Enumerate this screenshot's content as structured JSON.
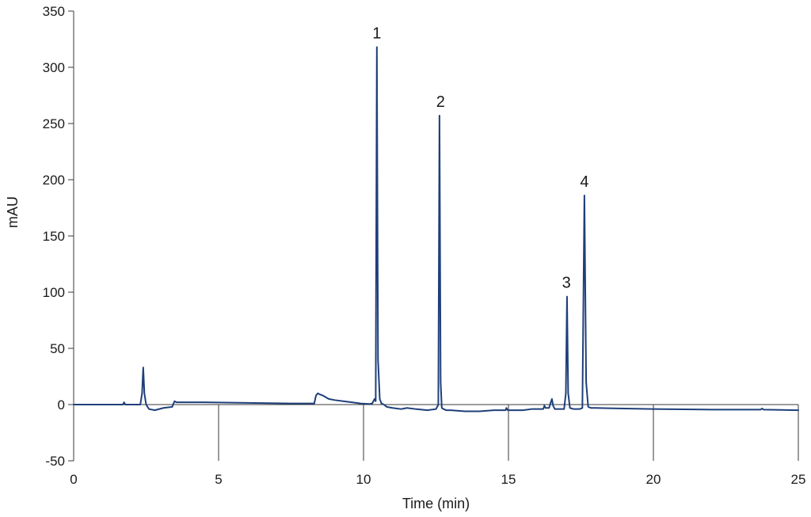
{
  "chart_data": {
    "type": "line",
    "xlabel": "Time (min)",
    "ylabel": "mAU",
    "xlim": [
      0,
      25
    ],
    "ylim": [
      -50,
      350
    ],
    "xticks": [
      0,
      5,
      10,
      15,
      20,
      25
    ],
    "yticks": [
      -50,
      0,
      50,
      100,
      150,
      200,
      250,
      300,
      350
    ],
    "grid": false,
    "line_color": "#1f3f7a",
    "series": [
      {
        "x": [
          0,
          1.0,
          1.7,
          1.74,
          1.78,
          1.82,
          2.0,
          2.3,
          2.36,
          2.4,
          2.44,
          2.5,
          2.6,
          2.8,
          3.1,
          3.4,
          3.48,
          3.55,
          4.5,
          6.0,
          7.5,
          8.3,
          8.36,
          8.42,
          8.5,
          8.6,
          8.8,
          9.0,
          9.3,
          9.6,
          9.9,
          10.2,
          10.3,
          10.34,
          10.38,
          10.42,
          10.46,
          10.5,
          10.56,
          10.62,
          10.7,
          10.8,
          11.0,
          11.3,
          11.5,
          11.8,
          12.2,
          12.5,
          12.58,
          12.62,
          12.66,
          12.7,
          12.76,
          12.85,
          13.0,
          13.5,
          14.0,
          14.5,
          14.9,
          14.93,
          14.97,
          15.2,
          15.5,
          15.8,
          16.2,
          16.24,
          16.28,
          16.4,
          16.46,
          16.5,
          16.54,
          16.6,
          16.8,
          16.92,
          16.98,
          17.02,
          17.06,
          17.12,
          17.25,
          17.45,
          17.55,
          17.62,
          17.68,
          17.75,
          17.85,
          18.0,
          19.0,
          20.0,
          22.0,
          23.7,
          23.75,
          23.8,
          25.0
        ],
        "y": [
          0,
          0,
          0,
          2,
          0,
          0,
          0,
          0,
          10,
          33,
          10,
          0,
          -4,
          -5,
          -3,
          -2,
          3,
          2,
          2,
          1.5,
          1,
          1,
          8,
          10,
          9,
          8,
          5,
          4,
          3,
          2,
          1,
          0.5,
          1,
          3,
          5,
          3,
          318,
          40,
          5,
          1,
          0,
          -2,
          -3,
          -4,
          -3,
          -4,
          -5,
          -4,
          0,
          257,
          20,
          -3,
          -4,
          -5,
          -5,
          -6,
          -6,
          -5,
          -5,
          -3,
          -5,
          -5,
          -5,
          -4,
          -4,
          -1,
          -3,
          -3,
          2,
          5,
          -1,
          -4,
          -4,
          -4,
          10,
          96,
          10,
          -3,
          -4,
          -4,
          -3,
          186,
          20,
          -2,
          -3,
          -3,
          -3.5,
          -4,
          -4.5,
          -4.5,
          -3.5,
          -4.5,
          -5
        ]
      }
    ],
    "annotations": [
      {
        "label": "1",
        "x": 10.46,
        "y": 318
      },
      {
        "label": "2",
        "x": 12.66,
        "y": 257
      },
      {
        "label": "3",
        "x": 17.0,
        "y": 96
      },
      {
        "label": "4",
        "x": 17.62,
        "y": 186
      }
    ]
  }
}
